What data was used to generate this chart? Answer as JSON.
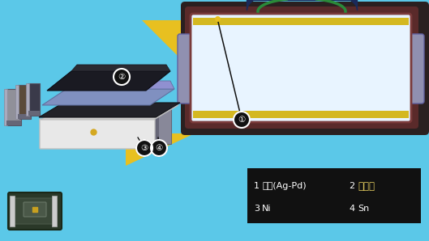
{
  "bg_color": "#5bc8e8",
  "legend_bg": "#111111",
  "legend_text_color": "#ffffff",
  "legend_highlight_color": "#e8d060",
  "legend_items": [
    {
      "num": "1",
      "label": "전극(Ag-Pd)",
      "col": 0
    },
    {
      "num": "2",
      "label": "보호체",
      "col": 1
    },
    {
      "num": "3",
      "label": "Ni",
      "col": 0
    },
    {
      "num": "4",
      "label": "Sn",
      "col": 1
    }
  ],
  "cross_section": {
    "outer_bg_color": "#2a2020",
    "frame_color": "#5a2a2a",
    "frame_inner_color": "#7a3a3a",
    "inner_bg": "#e8f4ff",
    "top_arc_fill": "#1a2a5a",
    "top_inner_arc_color": "#2a8a3a",
    "yellow_strip_color": "#d4b820",
    "side_notch_fill": "#9090b0",
    "side_notch_edge": "#6060a0"
  },
  "label_circle_bg": "#111111",
  "label_circle_border": "#ffffff",
  "yellow_tri_color": "#e8c020",
  "blue_tri_color": "#5bc8e8",
  "callout_line_color": "#111111"
}
